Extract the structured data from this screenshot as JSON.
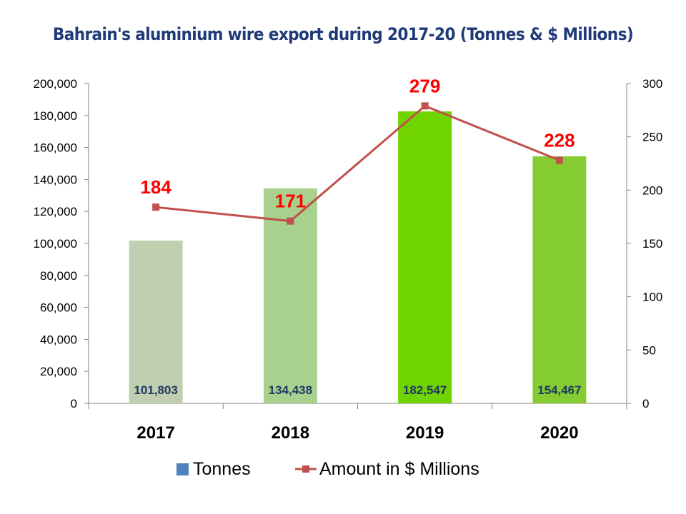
{
  "chart_data": {
    "type": "bar+line",
    "title": "Bahrain's aluminium wire export during 2017-20 (Tonnes & $ Millions)",
    "categories": [
      "2017",
      "2018",
      "2019",
      "2020"
    ],
    "series": [
      {
        "name": "Tonnes",
        "type": "bar",
        "axis": "left",
        "values": [
          101803,
          134438,
          182547,
          154467
        ],
        "labels": [
          "101,803",
          "134,438",
          "182,547",
          "154,467"
        ],
        "bar_colors": [
          "#c0cfb0",
          "#a9d18e",
          "#70d400",
          "#85cc33"
        ],
        "legend_color": "#4f81bd"
      },
      {
        "name": "Amount in $ Millions",
        "type": "line",
        "axis": "right",
        "values": [
          184,
          171,
          279,
          228
        ],
        "labels": [
          "184",
          "171",
          "279",
          "228"
        ],
        "color": "#c0504d"
      }
    ],
    "y_left": {
      "ylim": [
        0,
        200000
      ],
      "ticks": [
        "0",
        "20,000",
        "40,000",
        "60,000",
        "80,000",
        "100,000",
        "120,000",
        "140,000",
        "160,000",
        "180,000",
        "200,000"
      ]
    },
    "y_right": {
      "ylim": [
        0,
        300
      ],
      "ticks": [
        "0",
        "50",
        "100",
        "150",
        "200",
        "250",
        "300"
      ]
    },
    "grid": false,
    "legend": "bottom",
    "label_color": "#ff0000"
  }
}
